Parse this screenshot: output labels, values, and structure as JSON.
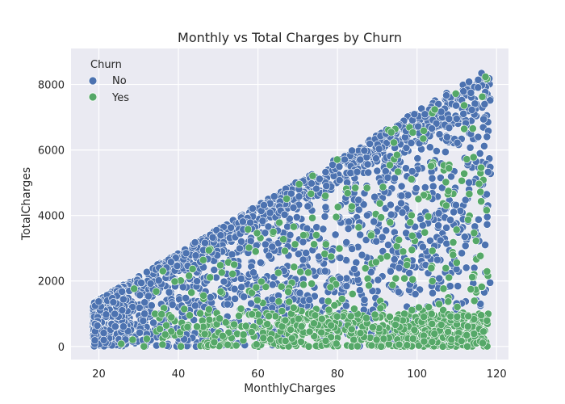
{
  "chart_data": {
    "type": "scatter",
    "title": "Monthly vs Total Charges by Churn",
    "xlabel": "MonthlyCharges",
    "ylabel": "TotalCharges",
    "xlim": [
      13,
      123
    ],
    "ylim": [
      -400,
      9100
    ],
    "xticks": [
      20,
      40,
      60,
      80,
      100,
      120
    ],
    "yticks": [
      0,
      2000,
      4000,
      6000,
      8000
    ],
    "grid": true,
    "legend": {
      "title": "Churn",
      "placement": "top-left"
    },
    "series": [
      {
        "name": "No",
        "color": "#4c72b0"
      },
      {
        "name": "Yes",
        "color": "#55a868"
      }
    ]
  }
}
